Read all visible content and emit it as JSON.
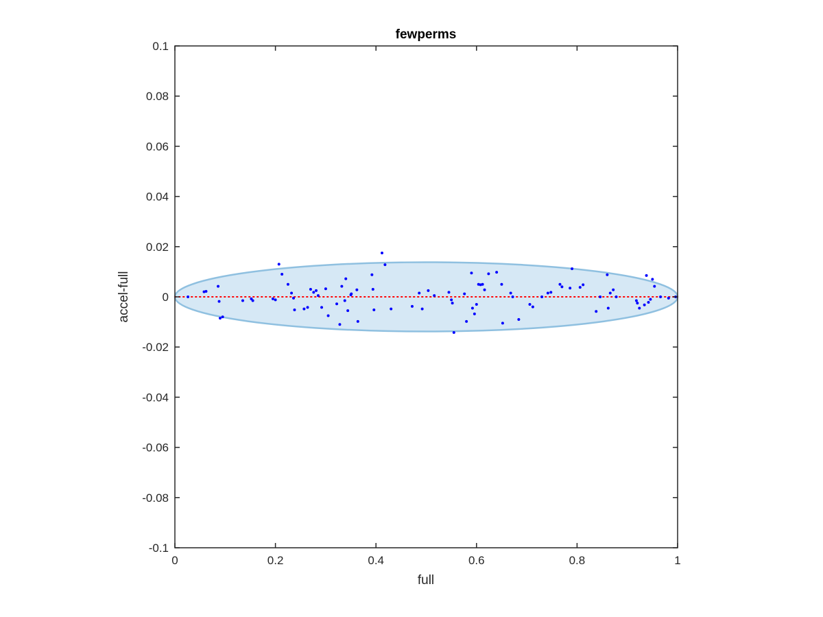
{
  "chart_data": {
    "type": "scatter",
    "title": "fewperms",
    "xlabel": "full",
    "ylabel": "accel-full",
    "xlim": [
      0,
      1
    ],
    "ylim": [
      -0.1,
      0.1
    ],
    "xticks": [
      0,
      0.2,
      0.4,
      0.6,
      0.8,
      1
    ],
    "xtick_labels": [
      "0",
      "0.2",
      "0.4",
      "0.6",
      "0.8",
      "1"
    ],
    "yticks": [
      -0.1,
      -0.08,
      -0.06,
      -0.04,
      -0.02,
      0,
      0.02,
      0.04,
      0.06,
      0.08,
      0.1
    ],
    "ytick_labels": [
      "-0.1",
      "-0.08",
      "-0.06",
      "-0.04",
      "-0.02",
      "0",
      "0.02",
      "0.04",
      "0.06",
      "0.08",
      "0.1"
    ],
    "grid": false,
    "colors": {
      "points": "#0000ff",
      "reference_line": "#ff0000",
      "ellipse_fill": "#d6e8f5",
      "ellipse_edge": "#8fc0e0",
      "axes": "#262626"
    },
    "reference_line": {
      "y": 0,
      "style": "dotted"
    },
    "ellipse": {
      "center": [
        0.5,
        0
      ],
      "x_radius": 0.5,
      "y_radius": 0.0138
    },
    "series": [
      {
        "x": [
          0.026,
          0.058,
          0.062,
          0.086,
          0.088,
          0.09,
          0.095,
          0.135,
          0.152,
          0.155,
          0.195,
          0.2,
          0.207,
          0.213,
          0.225,
          0.232,
          0.236,
          0.238,
          0.257,
          0.264,
          0.27,
          0.276,
          0.281,
          0.285,
          0.292,
          0.3,
          0.305,
          0.322,
          0.328,
          0.332,
          0.338,
          0.34,
          0.344,
          0.35,
          0.351,
          0.362,
          0.364,
          0.392,
          0.394,
          0.396,
          0.412,
          0.418,
          0.43,
          0.472,
          0.486,
          0.492,
          0.504,
          0.516,
          0.545,
          0.55,
          0.552,
          0.555,
          0.576,
          0.58,
          0.59,
          0.592,
          0.596,
          0.6,
          0.604,
          0.608,
          0.612,
          0.616,
          0.624,
          0.64,
          0.65,
          0.652,
          0.668,
          0.672,
          0.684,
          0.706,
          0.712,
          0.73,
          0.742,
          0.748,
          0.766,
          0.77,
          0.786,
          0.79,
          0.806,
          0.812,
          0.838,
          0.846,
          0.86,
          0.862,
          0.866,
          0.872,
          0.878,
          0.918,
          0.92,
          0.924,
          0.934,
          0.938,
          0.942,
          0.946,
          0.95,
          0.954,
          0.966,
          0.982,
          0.996
        ],
        "y": [
          0,
          0.002,
          0.0022,
          0.0042,
          -0.0018,
          -0.0085,
          -0.008,
          -0.0015,
          -0.0008,
          -0.0015,
          -0.0008,
          -0.0012,
          0.013,
          0.009,
          0.005,
          0.0015,
          -0.0005,
          -0.0052,
          -0.0048,
          -0.0042,
          0.003,
          0.0018,
          0.0025,
          0.0005,
          -0.0042,
          0.0032,
          -0.0075,
          -0.0028,
          -0.011,
          0.0042,
          -0.0015,
          0.0072,
          -0.0055,
          0.0008,
          0.0012,
          0.0028,
          -0.0098,
          0.0088,
          0.003,
          -0.0052,
          0.0175,
          0.0128,
          -0.0048,
          -0.0038,
          0.0015,
          -0.0048,
          0.0025,
          0.0005,
          0.0018,
          -0.0012,
          -0.0025,
          -0.0142,
          0.0012,
          -0.0098,
          0.0095,
          -0.0045,
          -0.0068,
          -0.003,
          0.005,
          0.0048,
          0.005,
          0.0028,
          0.0092,
          0.0098,
          0.005,
          -0.0105,
          0.0015,
          0,
          -0.009,
          -0.003,
          -0.004,
          0,
          0.0015,
          0.0018,
          0.005,
          0.004,
          0.0035,
          0.0112,
          0.0038,
          0.0048,
          -0.0058,
          0,
          0.0088,
          -0.0045,
          0.0015,
          0.0028,
          0,
          -0.0015,
          -0.0025,
          -0.0045,
          -0.0032,
          0.0085,
          -0.0022,
          -0.001,
          0.007,
          0.0042,
          0,
          -0.0005,
          0
        ]
      }
    ]
  }
}
